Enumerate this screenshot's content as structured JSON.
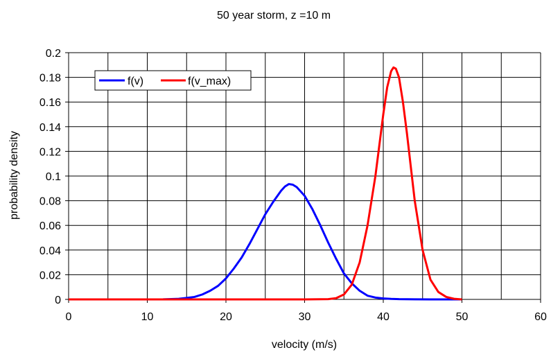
{
  "chart_data": {
    "type": "line",
    "title": "50 year storm,  z =10 m",
    "xlabel": "velocity (m/s)",
    "ylabel": "probability density",
    "xlim": [
      0,
      60
    ],
    "ylim": [
      0,
      0.2
    ],
    "x_ticks": [
      0,
      10,
      20,
      30,
      40,
      50,
      60
    ],
    "y_ticks": [
      0,
      0.02,
      0.04,
      0.06,
      0.08,
      0.1,
      0.12,
      0.14,
      0.16,
      0.18,
      0.2
    ],
    "x_tick_labels": [
      "0",
      "10",
      "20",
      "30",
      "40",
      "50",
      "60"
    ],
    "y_tick_labels": [
      "0",
      "0.02",
      "0.04",
      "0.06",
      "0.08",
      "0.1",
      "0.12",
      "0.14",
      "0.16",
      "0.18",
      "0.2"
    ],
    "grid": true,
    "legend_position": "top-left",
    "series": [
      {
        "name": "f(v)",
        "color": "#0000ff",
        "x": [
          0,
          10,
          12,
          14,
          15,
          16,
          17,
          18,
          19,
          20,
          21,
          22,
          23,
          24,
          25,
          26,
          27,
          27.5,
          28,
          28.5,
          29,
          30,
          31,
          32,
          33,
          34,
          35,
          36,
          37,
          38,
          39,
          40,
          41,
          42,
          44,
          46,
          48,
          50
        ],
        "y": [
          0,
          0,
          0.0001,
          0.0005,
          0.0012,
          0.002,
          0.004,
          0.007,
          0.011,
          0.017,
          0.025,
          0.034,
          0.045,
          0.057,
          0.069,
          0.079,
          0.088,
          0.0915,
          0.0935,
          0.093,
          0.091,
          0.084,
          0.073,
          0.06,
          0.046,
          0.033,
          0.021,
          0.013,
          0.007,
          0.003,
          0.0015,
          0.0008,
          0.0004,
          0.0002,
          0.0001,
          0,
          0,
          0
        ]
      },
      {
        "name": "f(v_max)",
        "color": "#ff0000",
        "x": [
          0,
          10,
          20,
          30,
          33,
          34,
          35,
          36,
          37,
          38,
          39,
          40,
          40.5,
          41,
          41.3,
          41.6,
          42,
          42.5,
          43,
          44,
          45,
          46,
          47,
          48,
          49,
          50
        ],
        "y": [
          0,
          0,
          0,
          0,
          0.0002,
          0.001,
          0.004,
          0.012,
          0.03,
          0.06,
          0.1,
          0.15,
          0.172,
          0.185,
          0.188,
          0.187,
          0.18,
          0.16,
          0.135,
          0.08,
          0.04,
          0.016,
          0.006,
          0.002,
          0.0005,
          0
        ]
      }
    ]
  }
}
